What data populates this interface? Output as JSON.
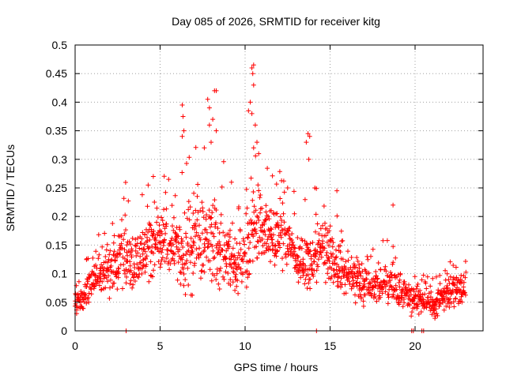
{
  "chart_data": {
    "type": "scatter",
    "title": "Day 085 of 2026, SRMTID for receiver kitg",
    "xlabel": "GPS time / hours",
    "ylabel": "SRMTID / TECUs",
    "xlim": [
      0,
      24
    ],
    "ylim": [
      0,
      0.5
    ],
    "xticks": [
      0,
      5,
      10,
      15,
      20
    ],
    "xtick_labels": [
      "0",
      "5",
      "10",
      "15",
      "20"
    ],
    "yticks": [
      0,
      0.05,
      0.1,
      0.15,
      0.2,
      0.25,
      0.3,
      0.35,
      0.4,
      0.45,
      0.5
    ],
    "ytick_labels": [
      "0",
      "0.05",
      "0.1",
      "0.15",
      "0.2",
      "0.25",
      "0.3",
      "0.35",
      "0.4",
      "0.45",
      "0.5"
    ],
    "grid": true,
    "marker": "+",
    "series_color": "#ff0000",
    "envelope": {
      "x": [
        0,
        0.5,
        1,
        1.5,
        2,
        2.5,
        3,
        3.5,
        4,
        4.5,
        5,
        5.5,
        6,
        6.5,
        7,
        7.5,
        8,
        8.5,
        9,
        9.5,
        10,
        10.5,
        11,
        11.5,
        12,
        12.5,
        13,
        13.5,
        14,
        14.5,
        15,
        15.5,
        16,
        16.5,
        17,
        17.5,
        18,
        18.5,
        19,
        19.5,
        20,
        20.5,
        21,
        21.5,
        22,
        22.5,
        23
      ],
      "center": [
        0.045,
        0.06,
        0.085,
        0.095,
        0.105,
        0.12,
        0.13,
        0.115,
        0.13,
        0.15,
        0.16,
        0.155,
        0.15,
        0.13,
        0.155,
        0.16,
        0.165,
        0.14,
        0.14,
        0.12,
        0.125,
        0.17,
        0.175,
        0.17,
        0.165,
        0.15,
        0.13,
        0.12,
        0.13,
        0.145,
        0.135,
        0.11,
        0.1,
        0.09,
        0.085,
        0.08,
        0.085,
        0.08,
        0.075,
        0.065,
        0.06,
        0.05,
        0.045,
        0.055,
        0.065,
        0.07,
        0.075
      ],
      "spread": [
        0.015,
        0.02,
        0.025,
        0.03,
        0.035,
        0.045,
        0.05,
        0.045,
        0.05,
        0.055,
        0.055,
        0.055,
        0.06,
        0.06,
        0.065,
        0.065,
        0.065,
        0.06,
        0.06,
        0.055,
        0.06,
        0.06,
        0.055,
        0.05,
        0.05,
        0.05,
        0.045,
        0.045,
        0.05,
        0.05,
        0.045,
        0.04,
        0.035,
        0.035,
        0.035,
        0.03,
        0.03,
        0.03,
        0.03,
        0.025,
        0.025,
        0.02,
        0.02,
        0.02,
        0.025,
        0.025,
        0.02
      ]
    },
    "spikes": [
      {
        "x": 6.3,
        "y": 0.395
      },
      {
        "x": 6.35,
        "y": 0.375
      },
      {
        "x": 6.3,
        "y": 0.34
      },
      {
        "x": 6.4,
        "y": 0.35
      },
      {
        "x": 7.8,
        "y": 0.405
      },
      {
        "x": 7.9,
        "y": 0.39
      },
      {
        "x": 8.2,
        "y": 0.42
      },
      {
        "x": 8.3,
        "y": 0.42
      },
      {
        "x": 8.1,
        "y": 0.37
      },
      {
        "x": 8.3,
        "y": 0.35
      },
      {
        "x": 7.9,
        "y": 0.36
      },
      {
        "x": 7.6,
        "y": 0.32
      },
      {
        "x": 8.0,
        "y": 0.33
      },
      {
        "x": 10.3,
        "y": 0.4
      },
      {
        "x": 10.4,
        "y": 0.46
      },
      {
        "x": 10.5,
        "y": 0.465
      },
      {
        "x": 10.45,
        "y": 0.45
      },
      {
        "x": 10.5,
        "y": 0.43
      },
      {
        "x": 10.4,
        "y": 0.38
      },
      {
        "x": 10.6,
        "y": 0.36
      },
      {
        "x": 10.2,
        "y": 0.385
      },
      {
        "x": 10.7,
        "y": 0.33
      },
      {
        "x": 10.8,
        "y": 0.31
      },
      {
        "x": 10.5,
        "y": 0.32
      },
      {
        "x": 13.7,
        "y": 0.345
      },
      {
        "x": 13.8,
        "y": 0.34
      },
      {
        "x": 13.75,
        "y": 0.3
      },
      {
        "x": 13.6,
        "y": 0.33
      },
      {
        "x": 4.3,
        "y": 0.255
      },
      {
        "x": 4.6,
        "y": 0.27
      },
      {
        "x": 5.5,
        "y": 0.265
      },
      {
        "x": 9.2,
        "y": 0.26
      },
      {
        "x": 12.5,
        "y": 0.25
      },
      {
        "x": 14.1,
        "y": 0.25
      },
      {
        "x": 15.4,
        "y": 0.245
      },
      {
        "x": 18.7,
        "y": 0.22
      },
      {
        "x": 3.0,
        "y": 0.0
      },
      {
        "x": 14.2,
        "y": 0.0
      },
      {
        "x": 19.8,
        "y": 0.0
      },
      {
        "x": 20.4,
        "y": 0.0
      },
      {
        "x": 19.9,
        "y": 0.0
      },
      {
        "x": 20.5,
        "y": 0.0
      }
    ]
  }
}
